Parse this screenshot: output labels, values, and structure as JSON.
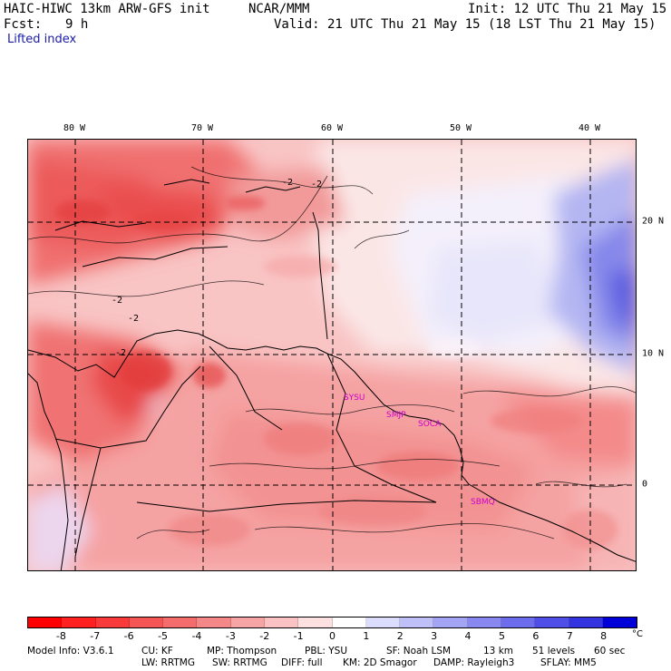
{
  "header": {
    "model_title": "HAIC-HIWC 13km ARW-GFS init",
    "org": "NCAR/MMM",
    "init": "Init: 12 UTC Thu 21 May 15",
    "fcst_label": "Fcst:",
    "fcst_value": "9 h",
    "valid": "Valid: 21 UTC Thu 21 May 15 (18 LST Thu 21 May 15)",
    "field_name": "Lifted index"
  },
  "map": {
    "lon_labels": [
      "80 W",
      "70 W",
      "60 W",
      "50 W",
      "40 W"
    ],
    "lat_labels": [
      "20 N",
      "10 N",
      "0"
    ],
    "cities": [
      "SYSU",
      "SMJP",
      "SOCA",
      "SBMQ"
    ],
    "contour_labels": [
      "-2",
      "-2",
      "-2",
      "-2",
      "-2"
    ]
  },
  "legend": {
    "ticks": [
      "-8",
      "-7",
      "-6",
      "-5",
      "-4",
      "-3",
      "-2",
      "-1",
      "0",
      "1",
      "2",
      "3",
      "4",
      "5",
      "6",
      "7",
      "8"
    ],
    "unit": "°C",
    "colors": [
      "#ff0000",
      "#ff2020",
      "#f83a3a",
      "#f55555",
      "#f46c6c",
      "#f48888",
      "#f7a4a4",
      "#fac2c2",
      "#fde0e0",
      "#ffffff",
      "#dcdcfc",
      "#c0c0f8",
      "#a4a4f4",
      "#8888f0",
      "#6c6cec",
      "#4f4fe8",
      "#3333e0",
      "#0000d8"
    ]
  },
  "model_info": {
    "line1": [
      "Model Info: V3.6.1",
      "CU: KF",
      "MP: Thompson",
      "PBL: YSU",
      "SF: Noah LSM",
      "13 km",
      "51 levels",
      "60 sec"
    ],
    "line2": [
      "LW: RRTMG",
      "SW: RRTMG",
      "DIFF: full",
      "KM: 2D Smagor",
      "DAMP: Rayleigh3",
      "SFLAY: MM5"
    ]
  }
}
